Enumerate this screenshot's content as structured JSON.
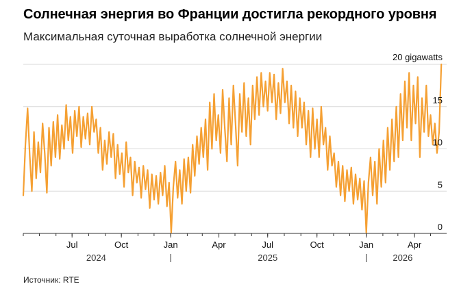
{
  "title": "Солнечная энергия во Франции достигла рекордного уровня",
  "subtitle": "Максимальная суточная выработка солнечной энергии",
  "source": "Источник: RTE",
  "colors": {
    "line": "#f5a033",
    "grid": "#d9d9d9",
    "axis": "#333333"
  },
  "chart_data": {
    "type": "line",
    "title": "Максимальная суточная выработка солнечной энергии",
    "ylabel": "",
    "unit": "gigawatts",
    "ylim": [
      0,
      20
    ],
    "y_ticks": [
      {
        "value": 20,
        "label": "20 gigawatts"
      },
      {
        "value": 15,
        "label": "15"
      },
      {
        "value": 10,
        "label": "10"
      },
      {
        "value": 5,
        "label": "5"
      },
      {
        "value": 0,
        "label": "0"
      }
    ],
    "xlim": [
      "2024-04-01",
      "2026-05-31"
    ],
    "x_month_ticks": [
      {
        "date": "2024-07-01",
        "label": "Jul"
      },
      {
        "date": "2024-10-01",
        "label": "Oct"
      },
      {
        "date": "2025-01-01",
        "label": "Jan"
      },
      {
        "date": "2025-04-01",
        "label": "Apr"
      },
      {
        "date": "2025-07-01",
        "label": "Jul"
      },
      {
        "date": "2025-10-01",
        "label": "Oct"
      },
      {
        "date": "2026-01-01",
        "label": "Jan"
      },
      {
        "date": "2026-04-01",
        "label": "Apr"
      }
    ],
    "x_year_labels": [
      {
        "label": "2024",
        "date": "2024-08-15"
      },
      {
        "label": "2025",
        "date": "2025-07-01"
      },
      {
        "label": "2026",
        "date": "2026-03-10"
      }
    ],
    "x_year_separators": [
      "2025-01-01",
      "2026-01-01"
    ],
    "series": [
      {
        "points": [
          [
            "2024-04-01",
            4.5
          ],
          [
            "2024-04-05",
            10.5
          ],
          [
            "2024-04-09",
            14.8
          ],
          [
            "2024-04-13",
            9.2
          ],
          [
            "2024-04-17",
            5.0
          ],
          [
            "2024-04-21",
            12.0
          ],
          [
            "2024-04-25",
            6.5
          ],
          [
            "2024-04-29",
            10.8
          ],
          [
            "2024-05-03",
            7.2
          ],
          [
            "2024-05-07",
            13.0
          ],
          [
            "2024-05-11",
            9.5
          ],
          [
            "2024-05-15",
            4.8
          ],
          [
            "2024-05-19",
            12.5
          ],
          [
            "2024-05-23",
            8.0
          ],
          [
            "2024-05-27",
            13.2
          ],
          [
            "2024-05-31",
            9.0
          ],
          [
            "2024-06-04",
            14.0
          ],
          [
            "2024-06-08",
            8.8
          ],
          [
            "2024-06-12",
            12.8
          ],
          [
            "2024-06-16",
            10.0
          ],
          [
            "2024-06-20",
            15.2
          ],
          [
            "2024-06-24",
            11.0
          ],
          [
            "2024-06-28",
            13.8
          ],
          [
            "2024-07-02",
            9.5
          ],
          [
            "2024-07-06",
            14.5
          ],
          [
            "2024-07-10",
            11.5
          ],
          [
            "2024-07-14",
            15.0
          ],
          [
            "2024-07-18",
            10.2
          ],
          [
            "2024-07-22",
            13.8
          ],
          [
            "2024-07-26",
            11.2
          ],
          [
            "2024-07-30",
            14.2
          ],
          [
            "2024-08-03",
            10.5
          ],
          [
            "2024-08-07",
            15.0
          ],
          [
            "2024-08-11",
            12.0
          ],
          [
            "2024-08-15",
            13.5
          ],
          [
            "2024-08-19",
            9.5
          ],
          [
            "2024-08-23",
            12.5
          ],
          [
            "2024-08-27",
            7.5
          ],
          [
            "2024-08-31",
            11.0
          ],
          [
            "2024-09-04",
            8.2
          ],
          [
            "2024-09-08",
            12.0
          ],
          [
            "2024-09-12",
            9.0
          ],
          [
            "2024-09-16",
            11.8
          ],
          [
            "2024-09-20",
            6.5
          ],
          [
            "2024-09-24",
            10.5
          ],
          [
            "2024-09-28",
            7.0
          ],
          [
            "2024-10-02",
            9.5
          ],
          [
            "2024-10-06",
            5.5
          ],
          [
            "2024-10-10",
            10.8
          ],
          [
            "2024-10-14",
            7.2
          ],
          [
            "2024-10-18",
            9.0
          ],
          [
            "2024-10-22",
            4.5
          ],
          [
            "2024-10-26",
            8.5
          ],
          [
            "2024-10-30",
            6.0
          ],
          [
            "2024-11-03",
            7.8
          ],
          [
            "2024-11-07",
            4.2
          ],
          [
            "2024-11-11",
            8.0
          ],
          [
            "2024-11-15",
            5.2
          ],
          [
            "2024-11-19",
            7.5
          ],
          [
            "2024-11-23",
            3.0
          ],
          [
            "2024-11-27",
            7.0
          ],
          [
            "2024-12-01",
            4.0
          ],
          [
            "2024-12-05",
            6.8
          ],
          [
            "2024-12-09",
            3.5
          ],
          [
            "2024-12-13",
            7.2
          ],
          [
            "2024-12-17",
            4.5
          ],
          [
            "2024-12-21",
            8.0
          ],
          [
            "2024-12-25",
            3.2
          ],
          [
            "2024-12-29",
            6.0
          ],
          [
            "2025-01-02",
            0.1
          ],
          [
            "2025-01-06",
            5.5
          ],
          [
            "2025-01-10",
            8.5
          ],
          [
            "2025-01-14",
            4.2
          ],
          [
            "2025-01-18",
            7.5
          ],
          [
            "2025-01-22",
            3.5
          ],
          [
            "2025-01-26",
            8.8
          ],
          [
            "2025-01-30",
            5.0
          ],
          [
            "2025-02-03",
            9.0
          ],
          [
            "2025-02-07",
            4.8
          ],
          [
            "2025-02-11",
            10.5
          ],
          [
            "2025-02-15",
            6.8
          ],
          [
            "2025-02-19",
            11.5
          ],
          [
            "2025-02-23",
            8.2
          ],
          [
            "2025-02-27",
            12.5
          ],
          [
            "2025-03-03",
            9.0
          ],
          [
            "2025-03-07",
            13.5
          ],
          [
            "2025-03-11",
            7.5
          ],
          [
            "2025-03-15",
            15.5
          ],
          [
            "2025-03-19",
            10.0
          ],
          [
            "2025-03-23",
            16.5
          ],
          [
            "2025-03-27",
            11.0
          ],
          [
            "2025-03-31",
            14.0
          ],
          [
            "2025-04-04",
            9.5
          ],
          [
            "2025-04-08",
            17.0
          ],
          [
            "2025-04-12",
            12.5
          ],
          [
            "2025-04-16",
            8.5
          ],
          [
            "2025-04-20",
            16.0
          ],
          [
            "2025-04-24",
            10.5
          ],
          [
            "2025-04-28",
            17.5
          ],
          [
            "2025-05-02",
            13.0
          ],
          [
            "2025-05-06",
            8.0
          ],
          [
            "2025-05-10",
            16.5
          ],
          [
            "2025-05-14",
            12.0
          ],
          [
            "2025-05-18",
            17.8
          ],
          [
            "2025-05-22",
            11.5
          ],
          [
            "2025-05-26",
            16.0
          ],
          [
            "2025-05-30",
            10.5
          ],
          [
            "2025-06-03",
            17.5
          ],
          [
            "2025-06-07",
            13.5
          ],
          [
            "2025-06-11",
            18.5
          ],
          [
            "2025-06-15",
            14.0
          ],
          [
            "2025-06-19",
            19.0
          ],
          [
            "2025-06-23",
            15.0
          ],
          [
            "2025-06-27",
            18.0
          ],
          [
            "2025-07-01",
            14.5
          ],
          [
            "2025-07-05",
            19.0
          ],
          [
            "2025-07-09",
            15.5
          ],
          [
            "2025-07-13",
            18.8
          ],
          [
            "2025-07-17",
            13.5
          ],
          [
            "2025-07-21",
            17.8
          ],
          [
            "2025-07-25",
            14.2
          ],
          [
            "2025-07-29",
            19.5
          ],
          [
            "2025-08-02",
            15.5
          ],
          [
            "2025-08-06",
            18.0
          ],
          [
            "2025-08-10",
            13.0
          ],
          [
            "2025-08-14",
            17.5
          ],
          [
            "2025-08-18",
            12.5
          ],
          [
            "2025-08-22",
            16.8
          ],
          [
            "2025-08-26",
            11.5
          ],
          [
            "2025-08-30",
            16.0
          ],
          [
            "2025-09-03",
            12.5
          ],
          [
            "2025-09-07",
            15.5
          ],
          [
            "2025-09-11",
            10.5
          ],
          [
            "2025-09-15",
            14.5
          ],
          [
            "2025-09-19",
            9.0
          ],
          [
            "2025-09-23",
            14.8
          ],
          [
            "2025-09-27",
            10.0
          ],
          [
            "2025-10-01",
            13.5
          ],
          [
            "2025-10-05",
            9.0
          ],
          [
            "2025-10-09",
            15.0
          ],
          [
            "2025-10-13",
            10.5
          ],
          [
            "2025-10-17",
            12.5
          ],
          [
            "2025-10-21",
            7.5
          ],
          [
            "2025-10-25",
            11.5
          ],
          [
            "2025-10-29",
            8.0
          ],
          [
            "2025-11-02",
            9.5
          ],
          [
            "2025-11-06",
            5.5
          ],
          [
            "2025-11-10",
            8.5
          ],
          [
            "2025-11-14",
            4.5
          ],
          [
            "2025-11-18",
            8.0
          ],
          [
            "2025-11-22",
            3.8
          ],
          [
            "2025-11-26",
            7.5
          ],
          [
            "2025-11-30",
            5.0
          ],
          [
            "2025-12-04",
            7.8
          ],
          [
            "2025-12-08",
            3.5
          ],
          [
            "2025-12-12",
            7.0
          ],
          [
            "2025-12-16",
            4.0
          ],
          [
            "2025-12-20",
            6.5
          ],
          [
            "2025-12-24",
            2.8
          ],
          [
            "2025-12-28",
            6.2
          ],
          [
            "2026-01-01",
            0.1
          ],
          [
            "2026-01-05",
            6.0
          ],
          [
            "2026-01-09",
            9.0
          ],
          [
            "2026-01-13",
            4.5
          ],
          [
            "2026-01-17",
            8.5
          ],
          [
            "2026-01-21",
            3.5
          ],
          [
            "2026-01-25",
            10.0
          ],
          [
            "2026-01-29",
            5.5
          ],
          [
            "2026-02-02",
            11.0
          ],
          [
            "2026-02-06",
            6.0
          ],
          [
            "2026-02-10",
            12.5
          ],
          [
            "2026-02-14",
            7.5
          ],
          [
            "2026-02-18",
            13.5
          ],
          [
            "2026-02-22",
            8.5
          ],
          [
            "2026-02-26",
            15.0
          ],
          [
            "2026-03-02",
            9.0
          ],
          [
            "2026-03-06",
            16.5
          ],
          [
            "2026-03-10",
            11.0
          ],
          [
            "2026-03-14",
            18.0
          ],
          [
            "2026-03-18",
            12.5
          ],
          [
            "2026-03-22",
            19.0
          ],
          [
            "2026-03-26",
            11.0
          ],
          [
            "2026-03-30",
            17.5
          ],
          [
            "2026-04-03",
            13.0
          ],
          [
            "2026-04-07",
            18.5
          ],
          [
            "2026-04-11",
            9.0
          ],
          [
            "2026-04-15",
            16.0
          ],
          [
            "2026-04-19",
            12.0
          ],
          [
            "2026-04-23",
            17.5
          ],
          [
            "2026-04-27",
            11.5
          ],
          [
            "2026-05-01",
            14.0
          ],
          [
            "2026-05-05",
            10.5
          ],
          [
            "2026-05-09",
            13.0
          ],
          [
            "2026-05-13",
            9.5
          ],
          [
            "2026-05-17",
            12.0
          ],
          [
            "2026-05-21",
            20.0
          ]
        ]
      }
    ]
  }
}
